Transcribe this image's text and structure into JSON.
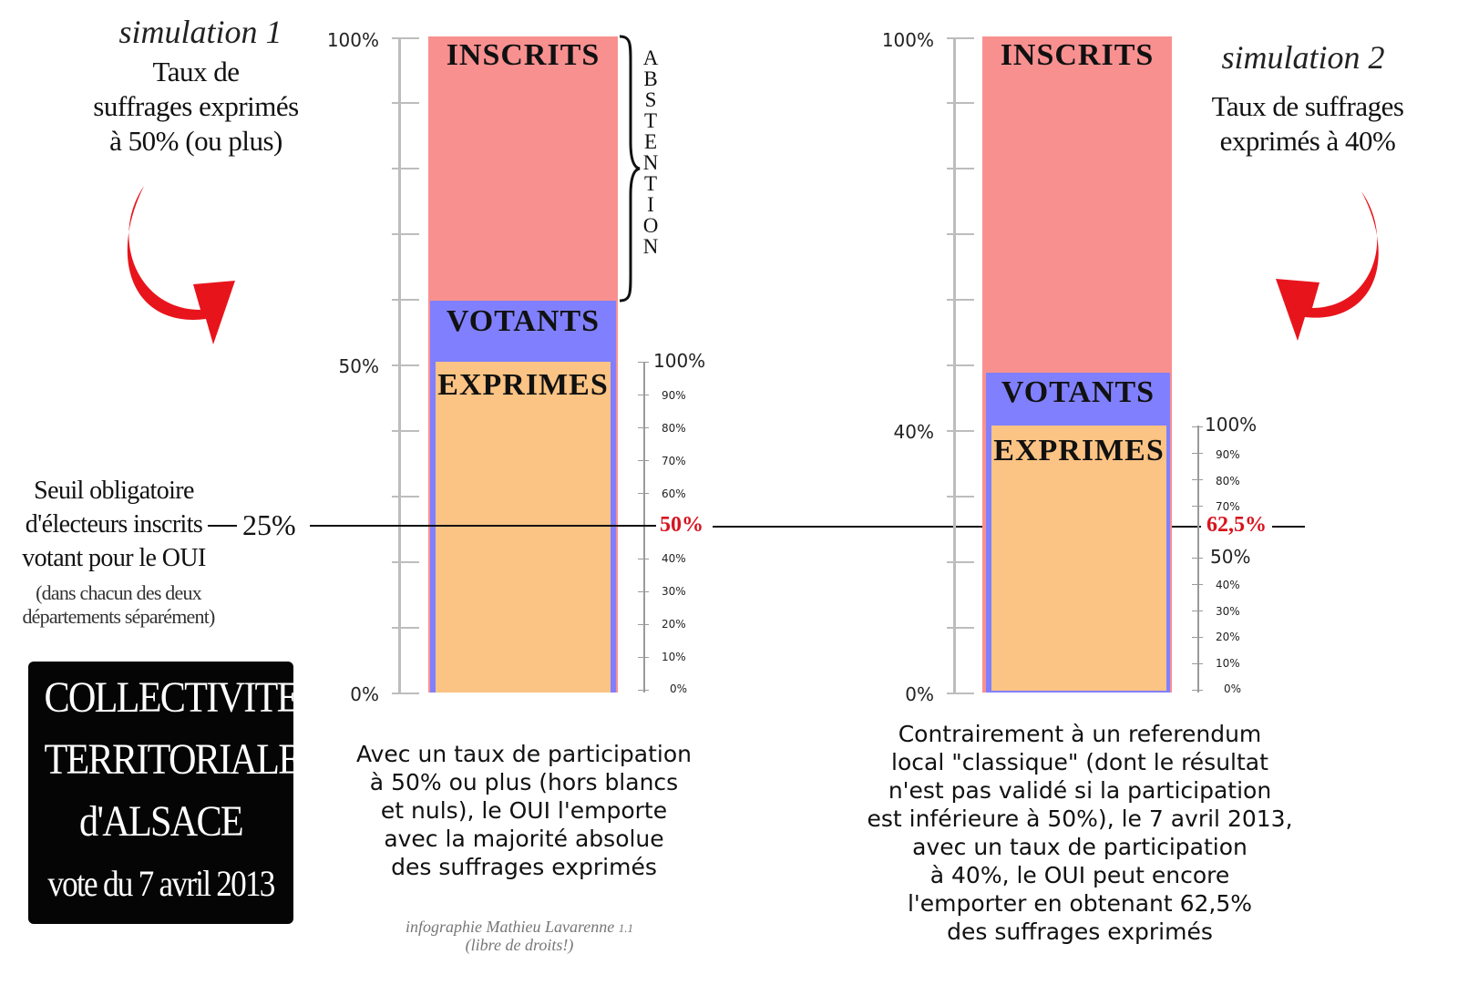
{
  "sim1": {
    "title": "simulation 1",
    "desc": [
      "Taux de",
      "suffrages exprimés",
      "à 50% (ou plus)"
    ],
    "axis_labels": [
      "100%",
      "50%",
      "0%"
    ],
    "bars": {
      "inscrits": "INSCRITS",
      "votants": "VOTANTS",
      "exprimes": "EXPRIMES"
    },
    "abstention": [
      "A",
      "B",
      "S",
      "T",
      "E",
      "N",
      "T",
      "I",
      "O",
      "N"
    ],
    "sub_scale_top": "100%",
    "sub_scale_small": [
      "90%",
      "80%",
      "70%",
      "60%",
      "40%",
      "30%",
      "20%",
      "10%",
      "0%"
    ],
    "threshold_value": "50%",
    "caption": [
      "Avec un taux de participation",
      "à 50% ou plus (hors blancs",
      "et nuls), le OUI l'emporte",
      "avec la majorité absolue",
      "des suffrages exprimés"
    ]
  },
  "sim2": {
    "title": "simulation 2",
    "desc": [
      "Taux de suffrages",
      "exprimés à 40%"
    ],
    "axis_labels": [
      "100%",
      "40%",
      "0%"
    ],
    "bars": {
      "inscrits": "INSCRITS",
      "votants": "VOTANTS",
      "exprimes": "EXPRIMES"
    },
    "sub_scale_top": "100%",
    "sub_scale_small": [
      "90%",
      "80%",
      "70%",
      "40%",
      "30%",
      "20%",
      "10%",
      "0%"
    ],
    "sub_scale_mid": "50%",
    "threshold_value": "62,5%",
    "caption": [
      "Contrairement à un referendum",
      "local \"classique\" (dont le résultat",
      "n'est pas validé si la participation",
      "est inférieure à 50%), le 7 avril 2013,",
      "avec un taux de participation",
      "à 40%, le OUI peut encore",
      "l'emporter en obtenant 62,5%",
      "des suffrages exprimés"
    ]
  },
  "threshold": {
    "lines": [
      "Seuil obligatoire",
      "d'électeurs inscrits",
      "votant pour le OUI"
    ],
    "value": "25%",
    "note": [
      "(dans chacun des deux",
      "départements séparément)"
    ]
  },
  "box": {
    "lines": [
      "COLLECTIVITE",
      "TERRITORIALE",
      "d'ALSACE",
      "vote du 7 avril 2013"
    ]
  },
  "credit": {
    "line1": "infographie Mathieu Lavarenne",
    "version": "1.1",
    "line2": "(libre de droits!)"
  },
  "colors": {
    "inscrits": "#f99090",
    "votants": "#8080ff",
    "exprimes": "#fbc384",
    "arrow": "#e8141c",
    "threshold_red": "#d7141e"
  }
}
